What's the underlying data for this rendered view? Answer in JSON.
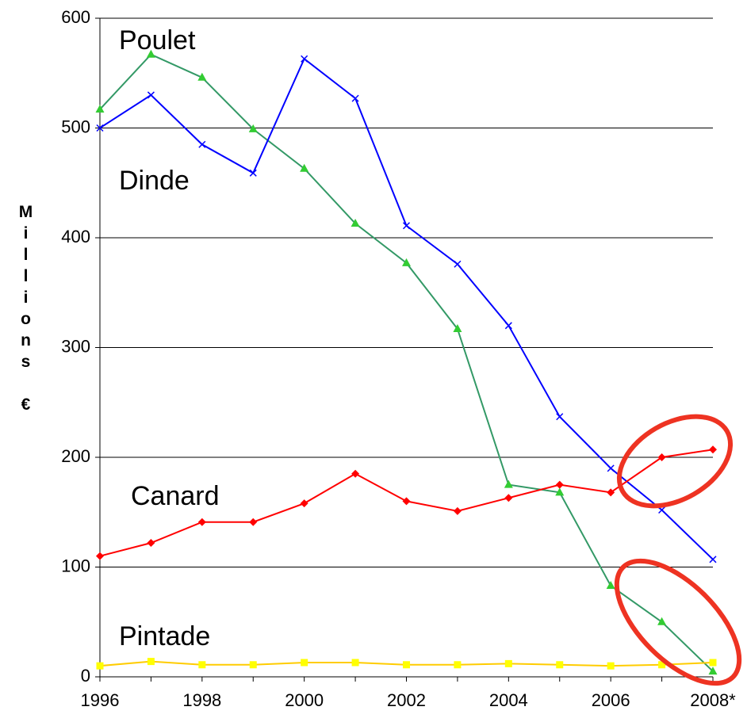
{
  "chart_data": {
    "type": "line",
    "ylabel": "Millions €",
    "categories": [
      "1996",
      null,
      "1998",
      null,
      "2000",
      null,
      "2002",
      null,
      "2004",
      null,
      "2006",
      null,
      "2008*"
    ],
    "series": [
      {
        "name": "Poulet",
        "color": "#339966",
        "marker": "triangle",
        "marker_color": "#33cc33",
        "values": [
          517,
          567,
          546,
          499,
          463,
          413,
          377,
          317,
          175,
          168,
          83,
          50,
          5
        ]
      },
      {
        "name": "Dinde",
        "color": "#0000ff",
        "marker": "x",
        "marker_color": "#0000ff",
        "values": [
          500,
          530,
          485,
          459,
          563,
          527,
          411,
          376,
          320,
          237,
          190,
          152,
          107
        ]
      },
      {
        "name": "Canard",
        "color": "#ff0000",
        "marker": "diamond",
        "marker_color": "#ff0000",
        "values": [
          110,
          122,
          141,
          141,
          158,
          185,
          160,
          151,
          163,
          175,
          168,
          200,
          207
        ]
      },
      {
        "name": "Pintade",
        "color": "#ffcc00",
        "marker": "square",
        "marker_color": "#ffff00",
        "values": [
          10,
          14,
          11,
          11,
          13,
          13,
          11,
          11,
          12,
          11,
          10,
          11,
          13
        ]
      }
    ],
    "ylim": [
      0,
      600
    ],
    "yticks": [
      0,
      100,
      200,
      300,
      400,
      500,
      600
    ],
    "grid": true
  }
}
